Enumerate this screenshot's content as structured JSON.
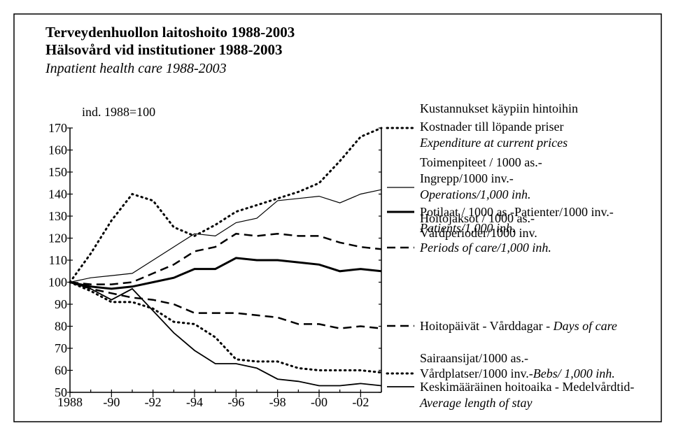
{
  "chart_data": {
    "type": "line",
    "title": [
      "Terveydenhuollon laitoshoito 1988-2003",
      "Hälsovård vid institutioner 1988-2003"
    ],
    "subtitle": "Inpatient health care 1988-2003",
    "y_label": "ind. 1988=100",
    "x": [
      1988,
      1989,
      1990,
      1991,
      1992,
      1993,
      1994,
      1995,
      1996,
      1997,
      1998,
      1999,
      2000,
      2001,
      2002,
      2003
    ],
    "xlim": [
      1988,
      2003
    ],
    "xticks": [
      1988,
      {
        "value": 1990,
        "label": "-90"
      },
      {
        "value": 1992,
        "label": "-92"
      },
      {
        "value": 1994,
        "label": "-94"
      },
      {
        "value": 1996,
        "label": "-96"
      },
      {
        "value": 1998,
        "label": "-98"
      },
      {
        "value": 2000,
        "label": "-00"
      },
      {
        "value": 2002,
        "label": "-02"
      }
    ],
    "ylim": [
      50,
      170
    ],
    "yticks": [
      50,
      60,
      70,
      80,
      90,
      100,
      110,
      120,
      130,
      140,
      150,
      160,
      170
    ],
    "series": [
      {
        "name": [
          [
            {
              "text": "Kustannukset käypiin hintoihin",
              "italic": false
            }
          ],
          [
            {
              "text": "Kostnader till löpande priser",
              "italic": false
            }
          ],
          [
            {
              "text": "Expenditure at current prices",
              "italic": true
            }
          ]
        ],
        "color": "#000",
        "line_style": "dotted",
        "width": 3,
        "values": [
          100,
          113,
          128,
          140,
          137,
          125,
          121,
          126,
          132,
          135,
          138,
          141,
          145,
          155,
          166,
          170
        ]
      },
      {
        "name": [
          [
            {
              "text": "Toimenpiteet / 1000 as.-",
              "italic": false
            }
          ],
          [
            {
              "text": "Ingrepp/1000 inv.-",
              "italic": false
            }
          ],
          [
            {
              "text": "Operations/1,000 inh.",
              "italic": true
            }
          ]
        ],
        "color": "#000",
        "line_style": "solid",
        "width": 1.2,
        "values": [
          100,
          102,
          103,
          104,
          110,
          116,
          122,
          121,
          127,
          129,
          137,
          138,
          139,
          136,
          140,
          142
        ]
      },
      {
        "name": [
          [
            {
              "text": "Hoitojaksot / 1000 as.-",
              "italic": false
            }
          ],
          [
            {
              "text": "Vårdperioder/1000 inv.",
              "italic": false
            }
          ],
          [
            {
              "text": "Periods of care/1,000 inh.",
              "italic": true
            }
          ]
        ],
        "color": "#000",
        "line_style": "dashed",
        "width": 2.5,
        "values": [
          100,
          99,
          99,
          100,
          104,
          108,
          114,
          116,
          122,
          121,
          122,
          121,
          121,
          118,
          116,
          115
        ]
      },
      {
        "name": [
          [
            {
              "text": "Potilaat / 1000 as.-Patienter/1000 inv.-",
              "italic": false
            }
          ],
          [
            {
              "text": "Patients/1,000 inh.",
              "italic": true
            }
          ]
        ],
        "color": "#000",
        "line_style": "solid",
        "width": 3,
        "values": [
          100,
          98,
          97,
          98,
          100,
          102,
          106,
          106,
          111,
          110,
          110,
          109,
          108,
          105,
          106,
          105
        ]
      },
      {
        "name": [
          [
            {
              "text": "Hoitopäivät - Vårddagar - ",
              "italic": false
            },
            {
              "text": "Days of care",
              "italic": true
            }
          ]
        ],
        "color": "#000",
        "line_style": "dashed",
        "width": 2.5,
        "values": [
          100,
          97,
          95,
          93,
          92,
          90,
          86,
          86,
          86,
          85,
          84,
          81,
          81,
          79,
          80,
          79
        ]
      },
      {
        "name": [
          [
            {
              "text": "Sairaansijat/1000 as.-",
              "italic": false
            }
          ],
          [
            {
              "text": "Vårdplatser/1000 inv.-",
              "italic": false
            },
            {
              "text": "Bebs/ 1,000 inh.",
              "italic": true
            }
          ]
        ],
        "color": "#000",
        "line_style": "dotted",
        "width": 3,
        "values": [
          100,
          96,
          91,
          91,
          88,
          82,
          81,
          75,
          65,
          64,
          64,
          61,
          60,
          60,
          60,
          59
        ]
      },
      {
        "name": [
          [
            {
              "text": "Keskimääräinen hoitoaika - Medelvårdtid-",
              "italic": false
            }
          ],
          [
            {
              "text": "Average length of stay",
              "italic": true
            }
          ]
        ],
        "color": "#000",
        "line_style": "solid",
        "width": 1.8,
        "values": [
          100,
          97,
          92,
          97,
          87,
          77,
          69,
          63,
          63,
          61,
          56,
          55,
          53,
          53,
          54,
          53
        ]
      }
    ]
  }
}
